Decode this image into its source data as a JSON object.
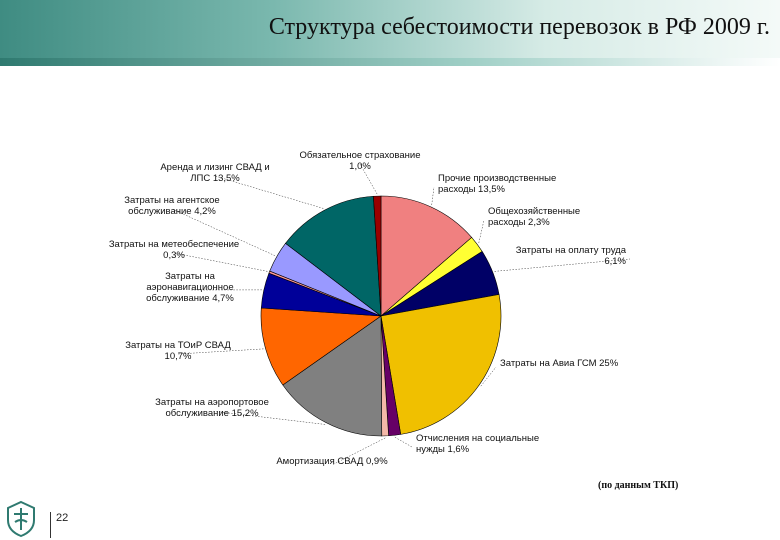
{
  "title": "Структура себестоимости перевозок в РФ  2009 г.",
  "source_note": "(по данным ТКП)",
  "page_number": "22",
  "colors": {
    "header": "#5aa79c",
    "accent": "#2f7a70"
  },
  "chart_data": {
    "type": "pie",
    "title": "",
    "slices": [
      {
        "label": [
          "Прочие производственные",
          "расходы 13,5%"
        ],
        "value": 13.5,
        "color": "#f08080"
      },
      {
        "label": [
          "Общехозяйственные",
          "расходы 2,3%"
        ],
        "value": 2.3,
        "color": "#ffff33"
      },
      {
        "label": [
          "Затраты на оплату труда",
          "6,1%"
        ],
        "value": 6.1,
        "color": "#000066"
      },
      {
        "label": [
          "Затраты на Авиа ГСМ 25%"
        ],
        "value": 25.0,
        "color": "#f0c000"
      },
      {
        "label": [
          "Отчисления на социальные",
          "нужды 1,6%"
        ],
        "value": 1.6,
        "color": "#660066"
      },
      {
        "label": [
          "Амортизация СВАД  0,9%"
        ],
        "value": 0.9,
        "color": "#f4b8a8"
      },
      {
        "label": [
          "Затраты на аэропортовое",
          "обслуживание 15,2%"
        ],
        "value": 15.2,
        "color": "#808080"
      },
      {
        "label": [
          "Затраты на ТОиР СВАД",
          "10,7%"
        ],
        "value": 10.7,
        "color": "#ff6600"
      },
      {
        "label": [
          "Затраты на",
          "аэронавигационное",
          "обслуживание 4,7%"
        ],
        "value": 4.7,
        "color": "#000099"
      },
      {
        "label": [
          "Затраты на метеобеспечение",
          "0,3%"
        ],
        "value": 0.3,
        "color": "#ff9999"
      },
      {
        "label": [
          "Затраты на агентское",
          "обслуживание 4,2%"
        ],
        "value": 4.2,
        "color": "#9999ff"
      },
      {
        "label": [
          "Аренда и лизинг СВАД и",
          "ЛПС 13,5%"
        ],
        "value": 13.5,
        "color": "#006666"
      },
      {
        "label": [
          "Обязательное страхование",
          "1,0%"
        ],
        "value": 1.0,
        "color": "#990000"
      }
    ]
  }
}
